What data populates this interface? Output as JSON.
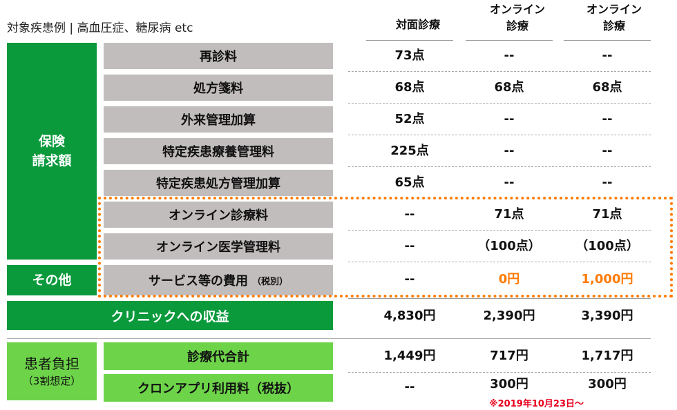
{
  "title": "対象疾患例 | 高血圧症、糖尿病 etc",
  "columns": [
    {
      "line1": "",
      "line2": "対面診療"
    },
    {
      "line1": "オンライン",
      "line2": "診療"
    },
    {
      "line1": "オンライン",
      "line2": "診療"
    }
  ],
  "groups": {
    "hoken": {
      "line1": "保険",
      "line2": "請求額"
    },
    "sonota": "その他",
    "kanja": {
      "line1": "患者負担",
      "line2": "（3割想定）"
    }
  },
  "rows": [
    {
      "label": "再診料",
      "values": [
        "73点",
        "--",
        "--"
      ]
    },
    {
      "label": "処方箋料",
      "values": [
        "68点",
        "68点",
        "68点"
      ]
    },
    {
      "label": "外来管理加算",
      "values": [
        "52点",
        "--",
        "--"
      ]
    },
    {
      "label": "特定疾患療養管理料",
      "values": [
        "225点",
        "--",
        "--"
      ]
    },
    {
      "label": "特定疾患処方管理加算",
      "values": [
        "65点",
        "--",
        "--"
      ]
    },
    {
      "label": "オンライン診療料",
      "values": [
        "--",
        "71点",
        "71点"
      ]
    },
    {
      "label": "オンライン医学管理料",
      "values": [
        "--",
        "（100点）",
        "（100点）"
      ]
    },
    {
      "label": "サービス等の費用",
      "sublabel": "（税別）",
      "values": [
        "--",
        "0円",
        "1,000円"
      ]
    }
  ],
  "revenue": {
    "label": "クリニックへの収益",
    "values": [
      "4,830円",
      "2,390円",
      "3,390円"
    ]
  },
  "patient_rows": [
    {
      "label": "診療代合計",
      "values": [
        "1,449円",
        "717円",
        "1,717円"
      ]
    },
    {
      "label": "クロンアプリ利用料（税抜）",
      "values": [
        "--",
        "300円",
        "300円"
      ]
    }
  ],
  "note": "※2019年10月23日～",
  "colors": {
    "dark_green": "#0a9a3c",
    "light_green": "#6dd44a",
    "gray": "#c2bdbd",
    "orange": "#ff7a00",
    "red": "#e8001c"
  }
}
